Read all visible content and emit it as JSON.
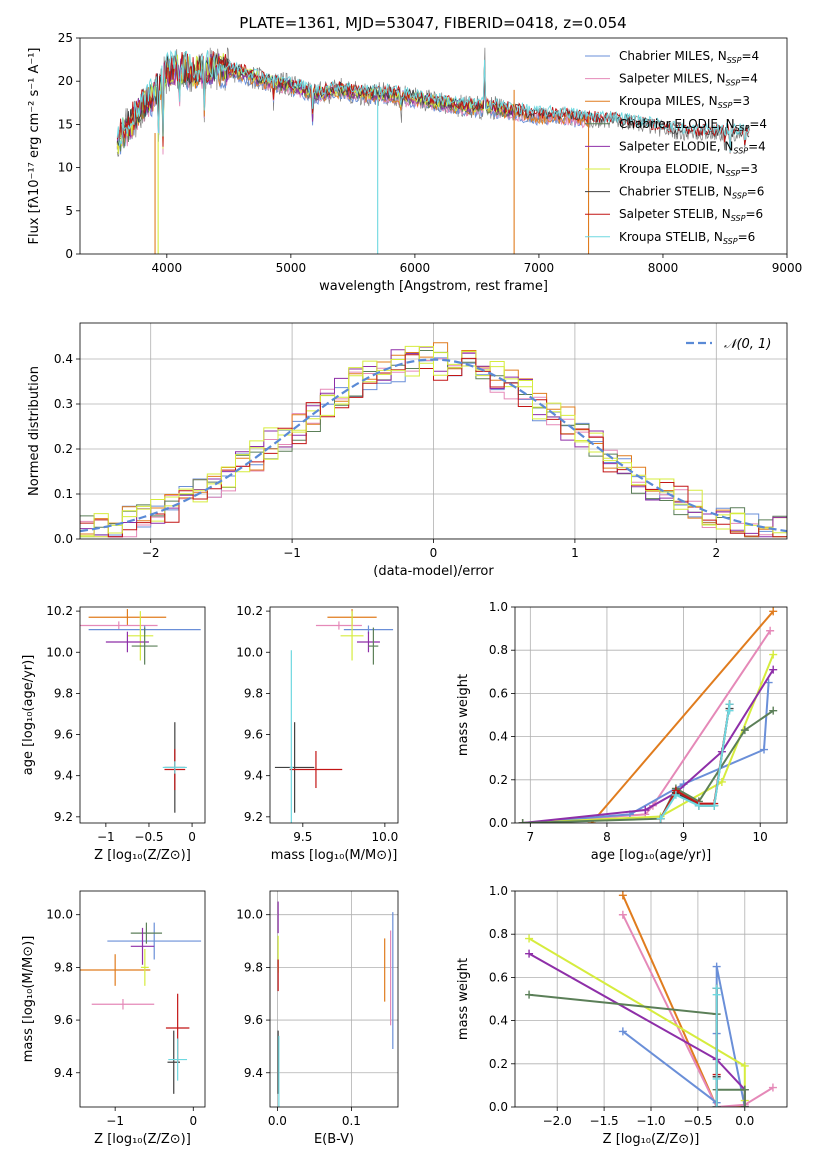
{
  "suptitle": "PLATE=1361, MJD=53047, FIBERID=0418, z=0.054",
  "colors": {
    "chabrier_miles": "#6a8fd8",
    "salpeter_miles": "#e589b8",
    "kroupa_miles": "#e07c1e",
    "chabrier_elodie": "#5b7f58",
    "salpeter_elodie": "#8e2fa8",
    "kroupa_elodie": "#d6ec3e",
    "chabrier_stelib": "#404040",
    "salpeter_stelib": "#c21515",
    "kroupa_stelib": "#6ed8e0",
    "data": "#7f7f7f",
    "gaussian": "#5a8ad6"
  },
  "chart_data": [
    {
      "id": "spectrum",
      "type": "line",
      "xlabel": "wavelength [Angstrom, rest frame]",
      "ylabel": "Flux [fλ10⁻¹⁷ erg cm⁻² s⁻¹ A⁻¹]",
      "xlim": [
        3300,
        9000
      ],
      "ylim": [
        0,
        25
      ],
      "xticks": [
        4000,
        5000,
        6000,
        7000,
        8000,
        9000
      ],
      "yticks": [
        0,
        5,
        10,
        15,
        20,
        25
      ],
      "grid": false,
      "legend_position": "top-right",
      "legend": [
        {
          "label": "Chabrier MILES, N",
          "sub": "SSP",
          "eq": "=4",
          "color_key": "chabrier_miles"
        },
        {
          "label": "Salpeter MILES, N",
          "sub": "SSP",
          "eq": "=4",
          "color_key": "salpeter_miles"
        },
        {
          "label": "Kroupa MILES, N",
          "sub": "SSP",
          "eq": "=3",
          "color_key": "kroupa_miles"
        },
        {
          "label": "Chabrier ELODIE, N",
          "sub": "SSP",
          "eq": "=4",
          "color_key": "chabrier_elodie"
        },
        {
          "label": "Salpeter ELODIE, N",
          "sub": "SSP",
          "eq": "=4",
          "color_key": "salpeter_elodie"
        },
        {
          "label": "Kroupa ELODIE, N",
          "sub": "SSP",
          "eq": "=3",
          "color_key": "kroupa_elodie"
        },
        {
          "label": "Chabrier STELIB, N",
          "sub": "SSP",
          "eq": "=6",
          "color_key": "chabrier_stelib"
        },
        {
          "label": "Salpeter STELIB, N",
          "sub": "SSP",
          "eq": "=6",
          "color_key": "salpeter_stelib"
        },
        {
          "label": "Kroupa STELIB, N",
          "sub": "SSP",
          "eq": "=6",
          "color_key": "kroupa_stelib"
        }
      ],
      "continuum": [
        [
          3600,
          13
        ],
        [
          3700,
          15
        ],
        [
          3800,
          17
        ],
        [
          3900,
          18.5
        ],
        [
          4000,
          21
        ],
        [
          4100,
          21.5
        ],
        [
          4200,
          21
        ],
        [
          4400,
          21.5
        ],
        [
          4600,
          21
        ],
        [
          4800,
          20
        ],
        [
          5000,
          19.5
        ],
        [
          5200,
          18.5
        ],
        [
          5400,
          19
        ],
        [
          5600,
          18.5
        ],
        [
          5800,
          18.5
        ],
        [
          6000,
          18
        ],
        [
          6200,
          17.5
        ],
        [
          6400,
          17
        ],
        [
          6600,
          17
        ],
        [
          6800,
          16.5
        ],
        [
          7000,
          16
        ],
        [
          7200,
          16
        ],
        [
          7400,
          15.5
        ],
        [
          7600,
          15.5
        ],
        [
          7800,
          15
        ],
        [
          8000,
          14.5
        ],
        [
          8200,
          14
        ],
        [
          8400,
          14
        ],
        [
          8600,
          14
        ],
        [
          8700,
          14
        ]
      ],
      "features": [
        {
          "x": 3934,
          "y": 12
        },
        {
          "x": 3969,
          "y": 12.5
        },
        {
          "x": 4102,
          "y": 17
        },
        {
          "x": 4304,
          "y": 16
        },
        {
          "x": 4861,
          "y": 17.5
        },
        {
          "x": 5175,
          "y": 15.5
        },
        {
          "x": 5890,
          "y": 16
        },
        {
          "x": 6563,
          "y": 24
        },
        {
          "x": 8498,
          "y": 12
        },
        {
          "x": 8542,
          "y": 11
        },
        {
          "x": 8662,
          "y": 11.5
        }
      ],
      "spikes": [
        {
          "x": 3905,
          "y_top": 14,
          "color_key": "kroupa_miles"
        },
        {
          "x": 3930,
          "y_top": 14,
          "color_key": "kroupa_elodie"
        },
        {
          "x": 5700,
          "y_top": 18,
          "color_key": "kroupa_stelib"
        },
        {
          "x": 6800,
          "y_top": 19,
          "color_key": "kroupa_miles"
        },
        {
          "x": 7400,
          "y_top": 16,
          "color_key": "kroupa_miles"
        }
      ]
    },
    {
      "id": "residuals",
      "type": "histogram",
      "xlabel": "(data-model)/error",
      "ylabel": "Normed distribution",
      "xlim": [
        -2.5,
        2.5
      ],
      "ylim": [
        0,
        0.48
      ],
      "xticks": [
        -2,
        -1,
        0,
        1,
        2
      ],
      "yticks": [
        0.0,
        0.1,
        0.2,
        0.3,
        0.4
      ],
      "grid": true,
      "legend_position": "top-right",
      "legend_label": "𝒩(0, 1)",
      "gaussian": {
        "mu": 0,
        "sigma": 1
      },
      "bin_width": 0.1
    },
    {
      "id": "age_vs_z",
      "type": "errorbar",
      "xlabel": "Z [log₁₀(Z/Z⊙)]",
      "ylabel": "age  [log₁₀(age/yr)]",
      "xlim": [
        -1.3,
        0.15
      ],
      "ylim": [
        9.17,
        10.22
      ],
      "xticks": [
        -1,
        -0.5,
        0
      ],
      "xticklabels": [
        "−1",
        "−0.5",
        "0"
      ],
      "yticks": [
        9.2,
        9.4,
        9.6,
        9.8,
        10.0,
        10.2
      ],
      "grid": false,
      "points": [
        {
          "c": "kroupa_miles",
          "x": -0.75,
          "xe": 0.45,
          "y": 10.17,
          "ye": 0.04
        },
        {
          "c": "salpeter_miles",
          "x": -0.85,
          "xe": 0.45,
          "y": 10.13,
          "ye": 0.02
        },
        {
          "c": "chabrier_miles",
          "x": -0.55,
          "xe": 0.65,
          "y": 10.11,
          "ye": 0.02
        },
        {
          "c": "kroupa_elodie",
          "x": -0.6,
          "xe": 0.15,
          "y": 10.08,
          "ye": 0.12
        },
        {
          "c": "salpeter_elodie",
          "x": -0.75,
          "xe": 0.25,
          "y": 10.05,
          "ye": 0.05
        },
        {
          "c": "chabrier_elodie",
          "x": -0.55,
          "xe": 0.15,
          "y": 10.03,
          "ye": 0.09
        },
        {
          "c": "chabrier_stelib",
          "x": -0.2,
          "xe": 0.12,
          "y": 9.44,
          "ye": 0.22
        },
        {
          "c": "salpeter_stelib",
          "x": -0.2,
          "xe": 0.12,
          "y": 9.43,
          "ye": 0.1
        },
        {
          "c": "kroupa_stelib",
          "x": -0.2,
          "xe": 0.14,
          "y": 9.44,
          "ye": 0.03
        }
      ]
    },
    {
      "id": "age_vs_mass",
      "type": "errorbar",
      "xlabel": "mass [log₁₀(M/M⊙)]",
      "ylabel": "",
      "xlim": [
        9.3,
        10.08
      ],
      "ylim": [
        9.17,
        10.22
      ],
      "xticks": [
        9.5,
        10.0
      ],
      "yticks": [
        9.2,
        9.4,
        9.6,
        9.8,
        10.0,
        10.2
      ],
      "grid": false,
      "points": [
        {
          "c": "kroupa_miles",
          "x": 9.8,
          "xe": 0.15,
          "y": 10.17,
          "ye": 0.04
        },
        {
          "c": "salpeter_miles",
          "x": 9.72,
          "xe": 0.14,
          "y": 10.13,
          "ye": 0.02
        },
        {
          "c": "chabrier_miles",
          "x": 9.9,
          "xe": 0.15,
          "y": 10.11,
          "ye": 0.02
        },
        {
          "c": "kroupa_elodie",
          "x": 9.8,
          "xe": 0.07,
          "y": 10.08,
          "ye": 0.12
        },
        {
          "c": "salpeter_elodie",
          "x": 9.9,
          "xe": 0.07,
          "y": 10.05,
          "ye": 0.05
        },
        {
          "c": "chabrier_elodie",
          "x": 9.93,
          "xe": 0.03,
          "y": 10.03,
          "ye": 0.09
        },
        {
          "c": "chabrier_stelib",
          "x": 9.45,
          "xe": 0.12,
          "y": 9.44,
          "ye": 0.22
        },
        {
          "c": "salpeter_stelib",
          "x": 9.58,
          "xe": 0.16,
          "y": 9.43,
          "ye": 0.09
        },
        {
          "c": "kroupa_stelib",
          "x": 9.43,
          "xe": 0.01,
          "y": 9.44,
          "ye": 0.57
        }
      ]
    },
    {
      "id": "mass_weight_vs_age",
      "type": "line",
      "xlabel": "age  [log₁₀(age/yr)]",
      "ylabel": "mass weight",
      "xlim": [
        6.8,
        10.35
      ],
      "ylim": [
        0,
        1.0
      ],
      "xticks": [
        7,
        8,
        9,
        10
      ],
      "yticks": [
        0.0,
        0.2,
        0.4,
        0.6,
        0.8,
        1.0
      ],
      "grid": true,
      "series": [
        {
          "c": "kroupa_miles",
          "x": [
            7.8,
            10.17
          ],
          "y": [
            0.0,
            0.98
          ]
        },
        {
          "c": "salpeter_miles",
          "x": [
            6.9,
            8.5,
            8.6,
            10.13
          ],
          "y": [
            0.0,
            0.04,
            0.08,
            0.89
          ]
        },
        {
          "c": "chabrier_miles",
          "x": [
            6.9,
            8.3,
            9.0,
            10.05,
            10.11
          ],
          "y": [
            0.0,
            0.04,
            0.18,
            0.34,
            0.65
          ]
        },
        {
          "c": "kroupa_elodie",
          "x": [
            6.9,
            8.7,
            9.5,
            10.17
          ],
          "y": [
            0.0,
            0.03,
            0.19,
            0.78
          ]
        },
        {
          "c": "salpeter_elodie",
          "x": [
            6.9,
            8.5,
            8.9,
            9.5,
            10.17
          ],
          "y": [
            0.0,
            0.06,
            0.14,
            0.33,
            0.71
          ]
        },
        {
          "c": "chabrier_elodie",
          "x": [
            6.9,
            8.7,
            8.9,
            9.2,
            9.8,
            10.17
          ],
          "y": [
            0.0,
            0.02,
            0.16,
            0.1,
            0.43,
            0.52
          ]
        },
        {
          "c": "chabrier_stelib",
          "x": [
            8.7,
            8.9,
            9.2,
            9.4,
            9.6,
            9.6
          ],
          "y": [
            0.02,
            0.14,
            0.08,
            0.08,
            0.55,
            0.53
          ]
        },
        {
          "c": "salpeter_stelib",
          "x": [
            8.7,
            8.9,
            9.2,
            9.4,
            9.6
          ],
          "y": [
            0.02,
            0.15,
            0.09,
            0.09,
            0.55
          ]
        },
        {
          "c": "kroupa_stelib",
          "x": [
            8.7,
            8.9,
            9.2,
            9.4,
            9.6,
            9.6
          ],
          "y": [
            0.02,
            0.13,
            0.08,
            0.08,
            0.55,
            0.52
          ]
        }
      ]
    },
    {
      "id": "mass_vs_z",
      "type": "errorbar",
      "xlabel": "Z [log₁₀(Z/Z⊙)]",
      "ylabel": "mass [log₁₀(M/M⊙)]",
      "xlim": [
        -1.45,
        0.15
      ],
      "ylim": [
        9.27,
        10.09
      ],
      "xticks": [
        -1,
        0
      ],
      "xticklabels": [
        "−1",
        "0"
      ],
      "yticks": [
        9.4,
        9.6,
        9.8,
        10.0
      ],
      "grid": false,
      "points": [
        {
          "c": "chabrier_miles",
          "x": -0.5,
          "xe": 0.6,
          "y": 9.9,
          "ye": 0.07
        },
        {
          "c": "salpeter_miles",
          "x": -0.9,
          "xe": 0.4,
          "y": 9.66,
          "ye": 0.02
        },
        {
          "c": "kroupa_miles",
          "x": -1.0,
          "xe": 0.45,
          "y": 9.79,
          "ye": 0.06
        },
        {
          "c": "chabrier_elodie",
          "x": -0.6,
          "xe": 0.2,
          "y": 9.93,
          "ye": 0.04
        },
        {
          "c": "salpeter_elodie",
          "x": -0.65,
          "xe": 0.15,
          "y": 9.88,
          "ye": 0.07
        },
        {
          "c": "kroupa_elodie",
          "x": -0.62,
          "xe": 0.05,
          "y": 9.8,
          "ye": 0.07
        },
        {
          "c": "chabrier_stelib",
          "x": -0.25,
          "xe": 0.08,
          "y": 9.44,
          "ye": 0.12
        },
        {
          "c": "salpeter_stelib",
          "x": -0.2,
          "xe": 0.15,
          "y": 9.57,
          "ye": 0.13
        },
        {
          "c": "kroupa_stelib",
          "x": -0.2,
          "xe": 0.12,
          "y": 9.45,
          "ye": 0.08
        }
      ]
    },
    {
      "id": "mass_vs_ebv",
      "type": "errorbar",
      "xlabel": "E(B-V)",
      "ylabel": "",
      "xlim": [
        -0.01,
        0.163
      ],
      "ylim": [
        9.27,
        10.09
      ],
      "xticks": [
        0.0,
        0.1
      ],
      "yticks": [
        9.4,
        9.6,
        9.8,
        10.0
      ],
      "grid": true,
      "points": [
        {
          "c": "chabrier_miles",
          "x": 0.156,
          "xe": 0,
          "y": 9.75,
          "ye": 0.26
        },
        {
          "c": "salpeter_miles",
          "x": 0.153,
          "xe": 0,
          "y": 9.76,
          "ye": 0.18
        },
        {
          "c": "kroupa_miles",
          "x": 0.145,
          "xe": 0,
          "y": 9.79,
          "ye": 0.12
        },
        {
          "c": "salpeter_elodie",
          "x": 0.001,
          "xe": 0,
          "y": 9.99,
          "ye": 0.06
        },
        {
          "c": "kroupa_elodie",
          "x": 0.001,
          "xe": 0,
          "y": 9.85,
          "ye": 0.07
        },
        {
          "c": "salpeter_stelib",
          "x": 0.001,
          "xe": 0,
          "y": 9.77,
          "ye": 0.06
        },
        {
          "c": "chabrier_stelib",
          "x": 0.001,
          "xe": 0,
          "y": 9.44,
          "ye": 0.12
        },
        {
          "c": "kroupa_stelib",
          "x": 0.002,
          "xe": 0,
          "y": 9.4,
          "ye": 0.14
        }
      ]
    },
    {
      "id": "mass_weight_vs_z",
      "type": "line",
      "xlabel": "Z [log₁₀(Z/Z⊙)]",
      "ylabel": "mass weight",
      "xlim": [
        -2.45,
        0.45
      ],
      "ylim": [
        0,
        1.0
      ],
      "xticks": [
        -2.0,
        -1.5,
        -1.0,
        -0.5,
        0.0
      ],
      "xticklabels": [
        "−2.0",
        "−1.5",
        "−1.0",
        "−0.5",
        "0.0"
      ],
      "yticks": [
        0.0,
        0.2,
        0.4,
        0.6,
        0.8,
        1.0
      ],
      "grid": true,
      "series": [
        {
          "c": "kroupa_miles",
          "x": [
            -1.3,
            -0.3,
            0.0
          ],
          "y": [
            0.98,
            0.0,
            0.0
          ]
        },
        {
          "c": "salpeter_miles",
          "x": [
            -1.3,
            -0.3,
            0.0,
            0.3
          ],
          "y": [
            0.89,
            0.0,
            0.01,
            0.09
          ]
        },
        {
          "c": "chabrier_miles",
          "x": [
            -1.3,
            -0.3,
            -0.3,
            -0.3,
            0.0
          ],
          "y": [
            0.35,
            0.02,
            0.34,
            0.65,
            0.0
          ]
        },
        {
          "c": "kroupa_elodie",
          "x": [
            -2.3,
            0.0,
            0.0
          ],
          "y": [
            0.78,
            0.19,
            0.03
          ]
        },
        {
          "c": "salpeter_elodie",
          "x": [
            -2.3,
            -0.3,
            0.0,
            0.0
          ],
          "y": [
            0.71,
            0.22,
            0.08,
            0.0
          ]
        },
        {
          "c": "chabrier_elodie",
          "x": [
            -2.3,
            -0.3,
            -0.3,
            0.0,
            0.0
          ],
          "y": [
            0.52,
            0.43,
            0.08,
            0.08,
            0.0
          ]
        },
        {
          "c": "chabrier_stelib",
          "x": [
            -0.3,
            -0.3,
            -0.3,
            -0.3
          ],
          "y": [
            0.0,
            0.14,
            0.55,
            0.0
          ]
        },
        {
          "c": "salpeter_stelib",
          "x": [
            -0.3,
            -0.3,
            -0.3
          ],
          "y": [
            0.0,
            0.15,
            0.55
          ]
        },
        {
          "c": "kroupa_stelib",
          "x": [
            -0.3,
            -0.3,
            -0.3,
            -0.3
          ],
          "y": [
            0.0,
            0.13,
            0.55,
            0.52
          ]
        }
      ]
    }
  ]
}
